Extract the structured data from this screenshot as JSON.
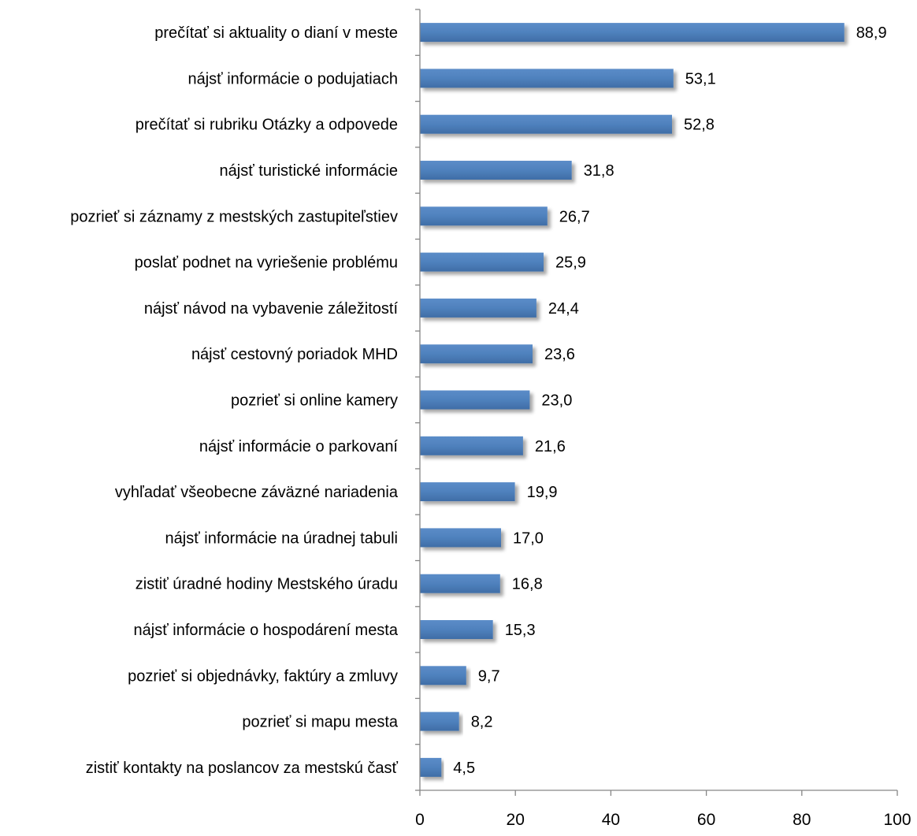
{
  "chart_data": {
    "type": "bar",
    "orientation": "horizontal",
    "title": "",
    "xlabel": "",
    "ylabel": "",
    "xlim": [
      0,
      100
    ],
    "x_ticks": [
      0,
      20,
      40,
      60,
      80,
      100
    ],
    "grid": false,
    "legend": "none",
    "bar_color": "#4F81BD",
    "categories": [
      "prečítať si aktuality o dianí v meste",
      "nájsť informácie o podujatiach",
      "prečítať si rubriku Otázky a odpovede",
      "nájsť turistické informácie",
      "pozrieť si záznamy z mestských zastupiteľstiev",
      "poslať podnet na vyriešenie problému",
      "nájsť návod na vybavenie záležitostí",
      "nájsť cestovný poriadok MHD",
      "pozrieť si online kamery",
      "nájsť informácie o parkovaní",
      "vyhľadať všeobecne záväzné nariadenia",
      "nájsť informácie na úradnej tabuli",
      "zistiť úradné hodiny Mestského úradu",
      "nájsť informácie o hospodárení mesta",
      "pozrieť si objednávky, faktúry a zmluvy",
      "pozrieť si mapu mesta",
      "zistiť kontakty na poslancov za mestskú časť"
    ],
    "values": [
      88.9,
      53.1,
      52.8,
      31.8,
      26.7,
      25.9,
      24.4,
      23.6,
      23.0,
      21.6,
      19.9,
      17.0,
      16.8,
      15.3,
      9.7,
      8.2,
      4.5
    ],
    "value_labels": [
      "88,9",
      "53,1",
      "52,8",
      "31,8",
      "26,7",
      "25,9",
      "24,4",
      "23,6",
      "23,0",
      "21,6",
      "19,9",
      "17,0",
      "16,8",
      "15,3",
      "9,7",
      "8,2",
      "4,5"
    ]
  }
}
